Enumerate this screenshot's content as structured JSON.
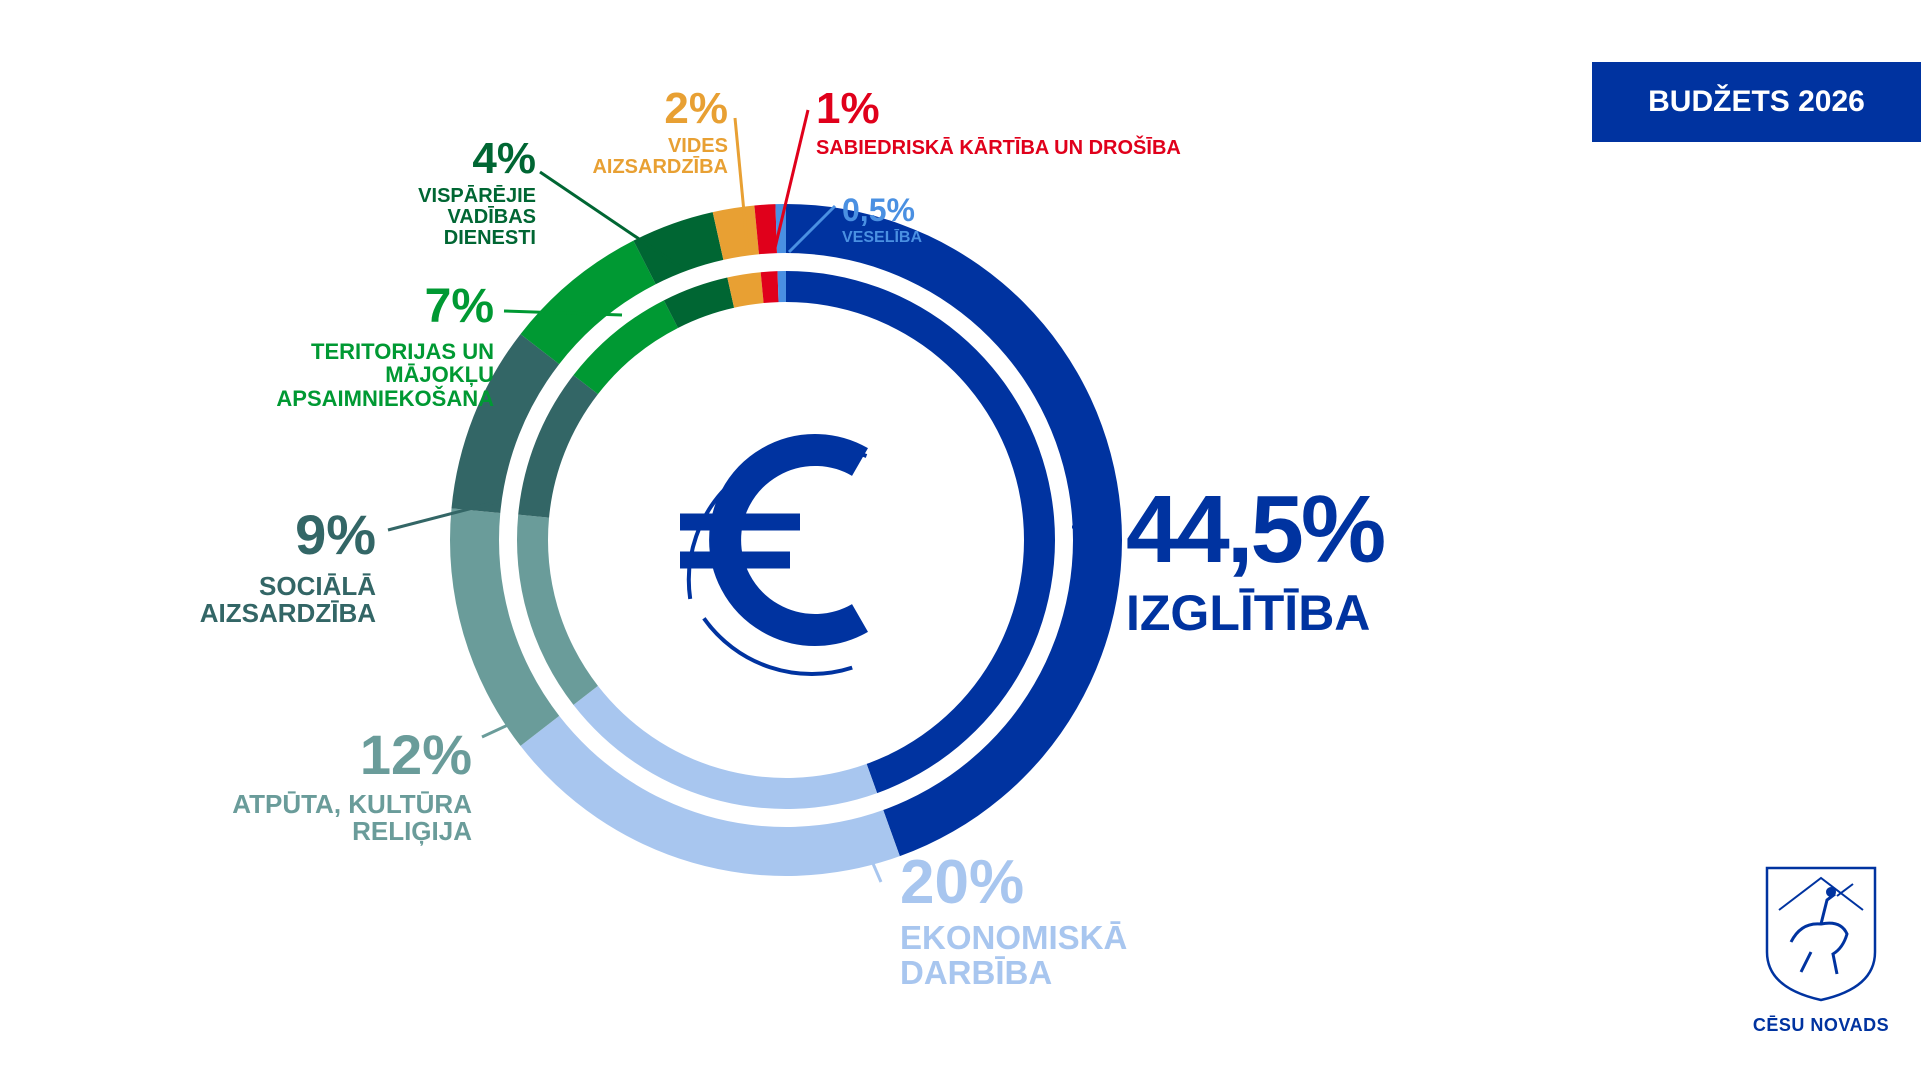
{
  "badge": {
    "label": "BUDŽETS 2026"
  },
  "logo": {
    "label": "CĒSU NOVADS",
    "icon": "coat-of-arms-icon"
  },
  "center_icon": "euro-icon",
  "chart_data": {
    "type": "pie",
    "title": "",
    "slices": [
      {
        "key": "izglitiba",
        "pct": "44,5%",
        "label": "IZGLĪTĪBA",
        "value": 44.5,
        "color": "#0033a0"
      },
      {
        "key": "ekonomiska",
        "pct": "20%",
        "label": "EKONOMISKĀ DARBĪBA",
        "value": 20,
        "color": "#a8c6ef"
      },
      {
        "key": "atputa",
        "pct": "12%",
        "label": "ATPŪTA, KULTŪRA RELIĢIJA",
        "value": 12,
        "color": "#6a9c9a"
      },
      {
        "key": "sociala",
        "pct": "9%",
        "label": "SOCIĀLĀ AIZSARDZĪBA",
        "value": 9,
        "color": "#336666"
      },
      {
        "key": "teritorijas",
        "pct": "7%",
        "label": "TERITORIJAS UN MĀJOKĻU APSAIMNIEKOŠANA",
        "value": 7,
        "color": "#009933"
      },
      {
        "key": "visparejie",
        "pct": "4%",
        "label": "VISPĀRĒJIE VADĪBAS DIENESTI",
        "value": 4,
        "color": "#006633"
      },
      {
        "key": "vides",
        "pct": "2%",
        "label": "VIDES AIZSARDZĪBA",
        "value": 2,
        "color": "#e8a033"
      },
      {
        "key": "sabiedriska",
        "pct": "1%",
        "label": "SABIEDRISKĀ KĀRTĪBA UN DROŠĪBA",
        "value": 1,
        "color": "#e0001b"
      },
      {
        "key": "veseliba",
        "pct": "0,5%",
        "label": "VESELĪBA",
        "value": 0.5,
        "color": "#4a90e2"
      }
    ]
  }
}
